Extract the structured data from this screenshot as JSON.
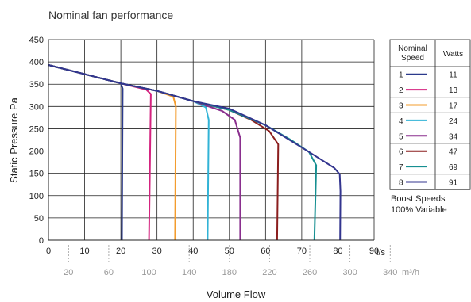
{
  "chart_data": {
    "type": "line",
    "title": "Nominal fan performance",
    "ylabel": "Static Pressure Pa",
    "xlabel": "Volume Flow",
    "x_unit": "l/s",
    "x2_unit_label": "m³/h",
    "xlim": [
      0,
      90
    ],
    "ylim": [
      0,
      450
    ],
    "x_ticks": [
      0,
      10,
      20,
      30,
      40,
      50,
      60,
      70,
      80,
      90
    ],
    "y_ticks": [
      0,
      50,
      100,
      150,
      200,
      250,
      300,
      350,
      400,
      450
    ],
    "x2_ticks": [
      20,
      60,
      100,
      140,
      180,
      220,
      260,
      300,
      340
    ],
    "grid": true,
    "series": [
      {
        "name": "1",
        "color": "#2b3a8c",
        "watts": "11",
        "points": [
          [
            0,
            393
          ],
          [
            20,
            352
          ],
          [
            20.5,
            340
          ],
          [
            20.3,
            0
          ]
        ]
      },
      {
        "name": "2",
        "color": "#d4237f",
        "watts": "13",
        "points": [
          [
            0,
            393
          ],
          [
            20,
            352
          ],
          [
            27,
            338
          ],
          [
            28.3,
            328
          ],
          [
            27.8,
            0
          ]
        ]
      },
      {
        "name": "3",
        "color": "#f39c2e",
        "watts": "17",
        "points": [
          [
            0,
            393
          ],
          [
            20,
            352
          ],
          [
            30,
            335
          ],
          [
            34.5,
            322
          ],
          [
            35.2,
            300
          ],
          [
            35,
            0
          ]
        ]
      },
      {
        "name": "4",
        "color": "#31b3d6",
        "watts": "24",
        "points": [
          [
            0,
            393
          ],
          [
            20,
            352
          ],
          [
            30,
            335
          ],
          [
            40,
            312
          ],
          [
            43.5,
            298
          ],
          [
            44.3,
            270
          ],
          [
            44,
            0
          ]
        ]
      },
      {
        "name": "5",
        "color": "#8a2f8e",
        "watts": "34",
        "points": [
          [
            0,
            393
          ],
          [
            20,
            352
          ],
          [
            30,
            335
          ],
          [
            40,
            312
          ],
          [
            48,
            290
          ],
          [
            51.5,
            270
          ],
          [
            53,
            230
          ],
          [
            53,
            0
          ]
        ]
      },
      {
        "name": "6",
        "color": "#8b1e1e",
        "watts": "47",
        "points": [
          [
            0,
            393
          ],
          [
            20,
            352
          ],
          [
            30,
            335
          ],
          [
            40,
            312
          ],
          [
            50,
            292
          ],
          [
            56,
            270
          ],
          [
            61,
            245
          ],
          [
            63.5,
            215
          ],
          [
            63.2,
            0
          ]
        ]
      },
      {
        "name": "7",
        "color": "#168f91",
        "watts": "69",
        "points": [
          [
            0,
            393
          ],
          [
            20,
            352
          ],
          [
            30,
            335
          ],
          [
            40,
            312
          ],
          [
            50,
            292
          ],
          [
            60,
            258
          ],
          [
            67,
            225
          ],
          [
            72,
            198
          ],
          [
            74,
            168
          ],
          [
            73.8,
            100
          ],
          [
            73.5,
            0
          ]
        ]
      },
      {
        "name": "8",
        "color": "#33358f",
        "watts": "91",
        "points": [
          [
            0,
            393
          ],
          [
            20,
            352
          ],
          [
            30,
            335
          ],
          [
            40,
            312
          ],
          [
            50,
            295
          ],
          [
            60,
            258
          ],
          [
            66,
            228
          ],
          [
            72,
            198
          ],
          [
            79,
            162
          ],
          [
            80.5,
            148
          ],
          [
            80.7,
            110
          ],
          [
            80.6,
            0
          ]
        ]
      }
    ],
    "legend": {
      "placement": "right",
      "col1_header_line1": "Nominal",
      "col1_header_line2": "Speed",
      "col2_header": "Watts"
    },
    "annotation_line1": "Boost Speeds",
    "annotation_line2": "100%  Variable"
  }
}
